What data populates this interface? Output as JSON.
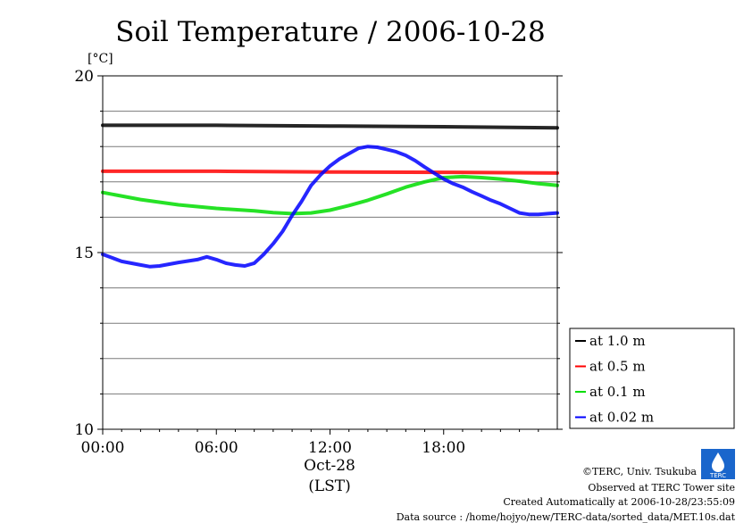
{
  "chart_data": {
    "type": "line",
    "title": "Soil Temperature / 2006-10-28",
    "y_unit": "[°C]",
    "xlabel_date": "Oct-28",
    "xlabel": "(LST)",
    "x_ticks": [
      "00:00",
      "06:00",
      "12:00",
      "18:00"
    ],
    "x_tick_values": [
      0,
      6,
      12,
      18
    ],
    "xlim": [
      0,
      24
    ],
    "y_ticks": [
      "10",
      "15",
      "20"
    ],
    "y_tick_values": [
      10,
      15,
      20
    ],
    "ylim": [
      10,
      20
    ],
    "grid": true,
    "legend_position": "bottom-right, outside plot",
    "series": [
      {
        "name": "at 1.0 m",
        "color": "#000000",
        "x": [
          0,
          6,
          12,
          18,
          24
        ],
        "y": [
          18.6,
          18.6,
          18.58,
          18.56,
          18.53
        ]
      },
      {
        "name": "at 0.5 m",
        "color": "#ff0000",
        "x": [
          0,
          6,
          12,
          18,
          24
        ],
        "y": [
          17.3,
          17.3,
          17.28,
          17.27,
          17.25
        ]
      },
      {
        "name": "at 0.1 m",
        "color": "#00dd00",
        "x": [
          0,
          2,
          4,
          6,
          8,
          9,
          10,
          11,
          12,
          13,
          14,
          15,
          16,
          17,
          18,
          19,
          20,
          21,
          22,
          23,
          24
        ],
        "y": [
          16.7,
          16.5,
          16.35,
          16.25,
          16.18,
          16.13,
          16.1,
          16.12,
          16.2,
          16.33,
          16.48,
          16.66,
          16.85,
          17.0,
          17.12,
          17.15,
          17.12,
          17.08,
          17.02,
          16.95,
          16.9
        ]
      },
      {
        "name": "at 0.02 m",
        "color": "#0000ff",
        "x": [
          0,
          0.5,
          1,
          2,
          2.5,
          3,
          4,
          5,
          5.5,
          6,
          6.5,
          7,
          7.5,
          8,
          8.5,
          9,
          9.5,
          10,
          10.5,
          11,
          11.5,
          12,
          12.5,
          13,
          13.5,
          14,
          14.5,
          15,
          15.5,
          16,
          16.5,
          17,
          17.5,
          18,
          18.5,
          19,
          19.5,
          20,
          20.5,
          21,
          21.5,
          22,
          22.5,
          23,
          23.5,
          24
        ],
        "y": [
          14.95,
          14.85,
          14.75,
          14.65,
          14.6,
          14.62,
          14.72,
          14.8,
          14.88,
          14.8,
          14.7,
          14.65,
          14.62,
          14.7,
          14.95,
          15.25,
          15.6,
          16.05,
          16.45,
          16.9,
          17.2,
          17.45,
          17.65,
          17.8,
          17.95,
          18.0,
          17.98,
          17.92,
          17.85,
          17.75,
          17.6,
          17.42,
          17.25,
          17.08,
          16.95,
          16.85,
          16.72,
          16.6,
          16.48,
          16.38,
          16.25,
          16.12,
          16.08,
          16.08,
          16.1,
          16.12
        ]
      }
    ]
  },
  "footer": {
    "copyright": "©TERC, Univ. Tsukuba",
    "observed": "Observed at TERC Tower site",
    "created": "Created Automatically at 2006-10-28/23:55:09",
    "source": "Data source : /home/hojyo/new/TERC-data/sorted_data/MET.10s.dat",
    "logo_text": "TERC"
  }
}
